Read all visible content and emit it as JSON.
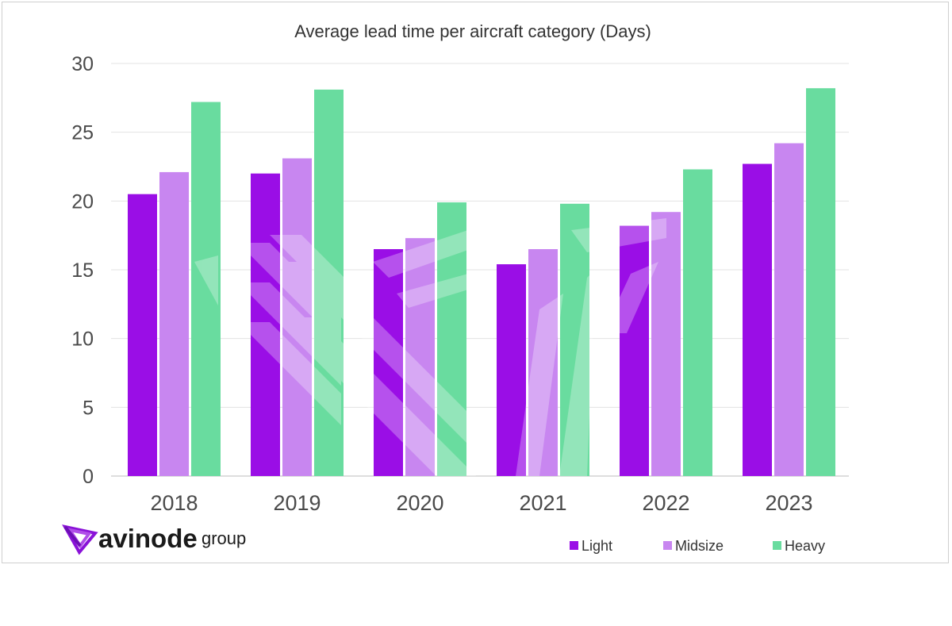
{
  "chart_data": {
    "type": "bar",
    "title": "Average lead time per aircraft category (Days)",
    "xlabel": "",
    "ylabel": "",
    "categories": [
      "2018",
      "2019",
      "2020",
      "2021",
      "2022",
      "2023"
    ],
    "series": [
      {
        "name": "Light",
        "color": "#9a0ee6",
        "values": [
          20.5,
          22.0,
          16.5,
          15.4,
          18.2,
          22.7
        ]
      },
      {
        "name": "Midsize",
        "color": "#c886f0",
        "values": [
          22.1,
          23.1,
          17.3,
          16.5,
          19.2,
          24.2
        ]
      },
      {
        "name": "Heavy",
        "color": "#69dc9f",
        "values": [
          27.2,
          28.1,
          19.9,
          19.8,
          22.3,
          28.2
        ]
      }
    ],
    "ylim": [
      0,
      30
    ],
    "yticks": [
      "0",
      "5",
      "10",
      "15",
      "20",
      "25",
      "30"
    ],
    "grid": true,
    "legend_position": "bottom-right"
  },
  "logo": {
    "word": "avinode",
    "suffix": "group",
    "mark_color": "#8a12d8"
  }
}
